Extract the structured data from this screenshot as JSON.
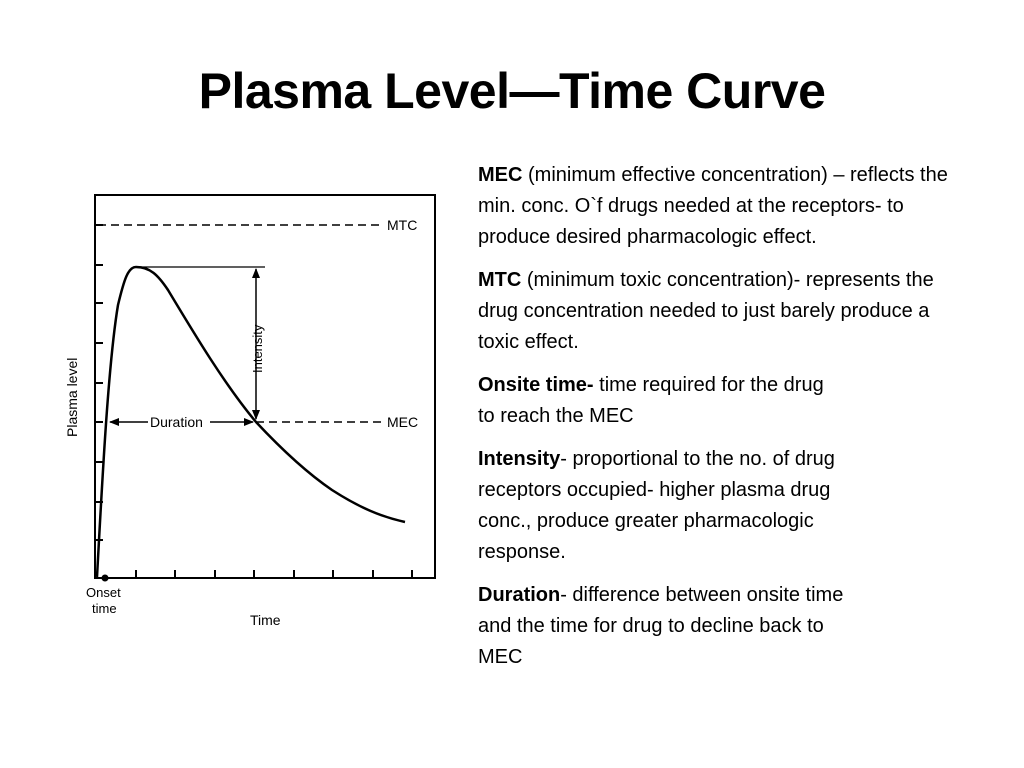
{
  "title": "Plasma Level—Time Curve",
  "diagram": {
    "y_axis_label": "Plasma level",
    "x_axis_label": "Time",
    "mtc_label": "MTC",
    "mec_label": "MEC",
    "intensity_label": "Intensity",
    "duration_label": "Duration",
    "onset_label_line1": "Onset",
    "onset_label_line2": "time"
  },
  "notes": {
    "mec": {
      "term": "MEC",
      "text": " (minimum effective concentration) – reflects the min. conc. O`f drugs needed at the receptors- to produce desired pharmacologic effect."
    },
    "mtc": {
      "term": "MTC",
      "text": " (minimum toxic concentration)- represents the drug concentration needed to just barely produce a toxic effect."
    },
    "onsite": {
      "term": "Onsite time-",
      "text": " time required for the drug to reach the MEC"
    },
    "intensity": {
      "term": "Intensity",
      "text": "- proportional to the no. of drug receptors occupied- higher plasma drug conc., produce greater pharmacologic response."
    },
    "duration": {
      "term": "Duration",
      "text": "- difference between onsite time and the time for drug to decline back to MEC"
    }
  }
}
